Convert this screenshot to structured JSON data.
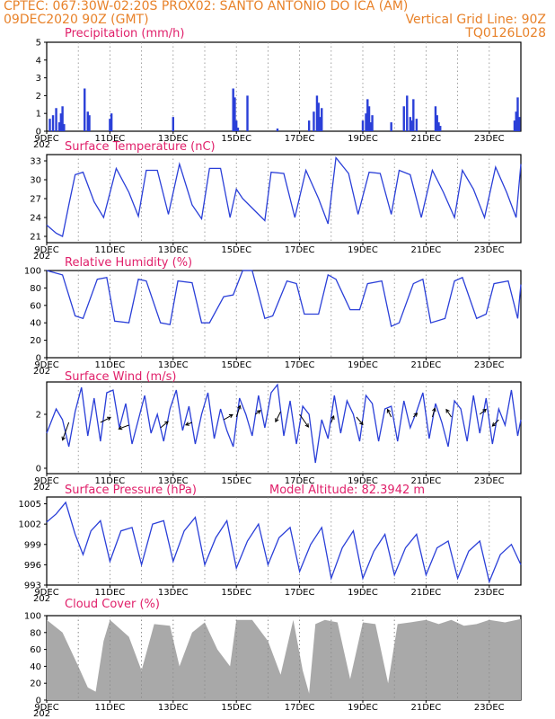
{
  "header": {
    "left1": "CPTEC:   067:30W-02:20S   PROX02: SANTO ANTONIO DO ICA (AM)",
    "left2": "09DEC2020 90Z (GMT)",
    "right2": "Vertical Grid Line: 90Z",
    "right3": "TQ0126L028"
  },
  "x_labels": [
    "9DEC",
    "11DEC",
    "13DEC",
    "15DEC",
    "17DEC",
    "19DEC",
    "21DEC",
    "23DEC"
  ],
  "x_label_days": [
    0,
    2,
    4,
    6,
    8,
    10,
    12,
    14
  ],
  "days_total": 15,
  "year_fragment": "202",
  "colors": {
    "line": "#2a3fd8",
    "title": "#e0206a",
    "header": "#e8822a",
    "cloud": "#a9a9a9"
  },
  "chart_data": [
    {
      "type": "bar",
      "title": "Precipitation (mm/h)",
      "ylim": [
        0,
        5
      ],
      "yticks": [
        "0",
        "1",
        "2",
        "3",
        "4",
        "5"
      ],
      "x_days": [
        0.1,
        0.2,
        0.3,
        0.4,
        0.45,
        0.5,
        0.55,
        1.2,
        1.3,
        1.35,
        2.0,
        2.05,
        4.0,
        5.9,
        5.95,
        6.0,
        6.05,
        6.35,
        7.3,
        8.3,
        8.45,
        8.55,
        8.6,
        8.65,
        8.7,
        10.0,
        10.1,
        10.15,
        10.2,
        10.25,
        10.3,
        10.9,
        11.3,
        11.4,
        11.5,
        11.55,
        11.6,
        11.7,
        12.3,
        12.35,
        12.4,
        12.45,
        14.8,
        14.85,
        14.9,
        14.95
      ],
      "values": [
        0.7,
        0.9,
        1.3,
        0.5,
        1.0,
        1.4,
        0.4,
        2.4,
        1.1,
        0.9,
        0.7,
        1.0,
        0.8,
        2.4,
        1.9,
        0.6,
        0.2,
        2.0,
        0.15,
        0.6,
        1.1,
        2.0,
        1.6,
        0.8,
        1.3,
        0.6,
        1.0,
        1.8,
        1.4,
        0.5,
        0.9,
        0.5,
        1.4,
        2.0,
        0.8,
        0.6,
        1.8,
        0.7,
        1.4,
        0.9,
        0.5,
        0.3,
        0.6,
        1.1,
        1.9,
        0.8
      ]
    },
    {
      "type": "line",
      "title": "Surface Temperature (nC)",
      "ylim": [
        20,
        34
      ],
      "yticks": [
        "21",
        "24",
        "27",
        "30",
        "33"
      ],
      "ytick_values": [
        21,
        24,
        27,
        30,
        33
      ],
      "x_days": [
        0,
        0.3,
        0.5,
        0.7,
        0.9,
        1.15,
        1.5,
        1.8,
        2.2,
        2.6,
        2.9,
        3.15,
        3.5,
        3.85,
        4.2,
        4.6,
        4.9,
        5.15,
        5.5,
        5.8,
        6.0,
        6.2,
        6.6,
        6.9,
        7.1,
        7.5,
        7.85,
        8.2,
        8.6,
        8.9,
        9.15,
        9.55,
        9.85,
        10.2,
        10.55,
        10.9,
        11.15,
        11.5,
        11.85,
        12.2,
        12.55,
        12.9,
        13.15,
        13.5,
        13.85,
        14.2,
        14.55,
        14.85,
        15
      ],
      "values": [
        22.8,
        21.5,
        21.0,
        26,
        30.8,
        31.2,
        26.5,
        24.0,
        31.8,
        28,
        24.2,
        31.5,
        31.5,
        24.5,
        32.5,
        26,
        23.8,
        31.8,
        31.8,
        24.0,
        28.5,
        27,
        25,
        23.5,
        31.2,
        31,
        24.0,
        31.5,
        27,
        23.0,
        33.5,
        31,
        24.5,
        31.2,
        31,
        24.5,
        31.5,
        30.8,
        24.0,
        31.5,
        28,
        24.0,
        31.5,
        28.5,
        24,
        32,
        28,
        24,
        32.5
      ]
    },
    {
      "type": "line",
      "title": "Relative Humidity (%)",
      "ylim": [
        0,
        100
      ],
      "yticks": [
        "0",
        "20",
        "40",
        "60",
        "80",
        "100"
      ],
      "ytick_values": [
        0,
        20,
        40,
        60,
        80,
        100
      ],
      "x_days": [
        0,
        0.5,
        0.9,
        1.15,
        1.6,
        1.9,
        2.15,
        2.6,
        2.9,
        3.15,
        3.6,
        3.9,
        4.15,
        4.6,
        4.9,
        5.15,
        5.6,
        5.9,
        6.2,
        6.5,
        6.9,
        7.15,
        7.6,
        7.9,
        8.15,
        8.6,
        8.9,
        9.15,
        9.6,
        9.9,
        10.15,
        10.6,
        10.9,
        11.15,
        11.6,
        11.9,
        12.15,
        12.6,
        12.9,
        13.15,
        13.6,
        13.9,
        14.15,
        14.6,
        14.9,
        15
      ],
      "values": [
        100,
        95,
        48,
        45,
        90,
        92,
        42,
        40,
        90,
        88,
        40,
        38,
        88,
        86,
        40,
        40,
        70,
        72,
        100,
        100,
        45,
        48,
        88,
        85,
        50,
        50,
        95,
        90,
        55,
        55,
        85,
        88,
        36,
        40,
        85,
        90,
        40,
        45,
        88,
        92,
        45,
        50,
        85,
        88,
        45,
        84
      ]
    },
    {
      "type": "line",
      "title": "Surface Wind (m/s)",
      "ylim": [
        -0.2,
        3.2
      ],
      "yticks": [
        "0",
        "2"
      ],
      "ytick_values": [
        0,
        2
      ],
      "x_days": [
        0,
        0.3,
        0.5,
        0.7,
        0.9,
        1.1,
        1.3,
        1.5,
        1.7,
        1.9,
        2.1,
        2.3,
        2.5,
        2.7,
        2.9,
        3.1,
        3.3,
        3.5,
        3.7,
        3.9,
        4.1,
        4.3,
        4.5,
        4.7,
        4.9,
        5.1,
        5.3,
        5.5,
        5.7,
        5.9,
        6.1,
        6.3,
        6.5,
        6.7,
        6.9,
        7.1,
        7.3,
        7.5,
        7.7,
        7.9,
        8.1,
        8.3,
        8.5,
        8.7,
        8.9,
        9.1,
        9.3,
        9.5,
        9.7,
        9.9,
        10.1,
        10.3,
        10.5,
        10.7,
        10.9,
        11.1,
        11.3,
        11.5,
        11.7,
        11.9,
        12.1,
        12.3,
        12.5,
        12.7,
        12.9,
        13.1,
        13.3,
        13.5,
        13.7,
        13.9,
        14.1,
        14.3,
        14.5,
        14.7,
        14.9,
        15
      ],
      "values": [
        1.3,
        2.2,
        1.8,
        0.8,
        2.1,
        3.0,
        1.2,
        2.6,
        1.0,
        2.8,
        2.9,
        1.5,
        2.4,
        0.9,
        1.8,
        2.7,
        1.3,
        2.0,
        1.0,
        2.2,
        2.9,
        1.4,
        2.3,
        0.9,
        2.0,
        2.8,
        1.1,
        2.2,
        1.4,
        0.8,
        2.6,
        2.0,
        1.2,
        2.7,
        1.5,
        2.8,
        3.1,
        1.2,
        2.5,
        0.9,
        2.3,
        2.0,
        0.2,
        1.8,
        1.1,
        2.7,
        1.3,
        2.5,
        2.0,
        1.0,
        2.7,
        2.4,
        1.0,
        2.2,
        2.3,
        1.0,
        2.5,
        1.5,
        2.1,
        2.8,
        1.1,
        2.4,
        1.7,
        0.8,
        2.5,
        2.2,
        1.0,
        2.7,
        1.3,
        2.6,
        0.9,
        2.2,
        1.6,
        2.9,
        1.2,
        1.8
      ],
      "arrows": [
        [
          0.7,
          1.7,
          -0.5,
          -1.4
        ],
        [
          1.7,
          1.7,
          0.8,
          0.4
        ],
        [
          2.6,
          1.6,
          -0.8,
          -0.3
        ],
        [
          3.6,
          1.5,
          0.6,
          0.5
        ],
        [
          4.6,
          1.7,
          -0.5,
          -0.2
        ],
        [
          5.6,
          1.8,
          0.7,
          0.4
        ],
        [
          6.0,
          1.9,
          0.3,
          0.9
        ],
        [
          6.6,
          2.0,
          0.4,
          0.3
        ],
        [
          7.4,
          2.1,
          -0.4,
          -0.8
        ],
        [
          8.0,
          2.0,
          0.7,
          -1.0
        ],
        [
          9.0,
          1.7,
          0.2,
          0.5
        ],
        [
          9.8,
          1.9,
          0.5,
          -0.6
        ],
        [
          10.9,
          1.9,
          -0.3,
          0.6
        ],
        [
          11.6,
          1.9,
          0.3,
          0.3
        ],
        [
          12.2,
          1.9,
          0.2,
          0.7
        ],
        [
          12.8,
          1.9,
          -0.4,
          0.6
        ],
        [
          13.7,
          2.0,
          0.5,
          0.4
        ],
        [
          14.3,
          1.8,
          -0.5,
          -0.5
        ]
      ]
    },
    {
      "type": "line",
      "title": "Surface Pressure (hPa)",
      "annotation": "Model Altitude: 82.3942  m",
      "ylim": [
        993,
        1006
      ],
      "yticks": [
        "993",
        "996",
        "999",
        "1002",
        "1005"
      ],
      "ytick_values": [
        993,
        996,
        999,
        1002,
        1005
      ],
      "x_days": [
        0,
        0.3,
        0.6,
        0.9,
        1.15,
        1.4,
        1.7,
        2.0,
        2.35,
        2.7,
        3.0,
        3.35,
        3.7,
        4.0,
        4.35,
        4.7,
        5.0,
        5.35,
        5.7,
        6.0,
        6.35,
        6.7,
        7.0,
        7.35,
        7.7,
        8.0,
        8.35,
        8.7,
        9.0,
        9.35,
        9.7,
        10.0,
        10.35,
        10.7,
        11.0,
        11.35,
        11.7,
        12.0,
        12.35,
        12.7,
        13.0,
        13.35,
        13.7,
        14.0,
        14.35,
        14.7,
        15
      ],
      "values": [
        1002.3,
        1003.5,
        1005.2,
        1000.5,
        997.5,
        1001,
        1002.5,
        996.5,
        1001,
        1001.5,
        996,
        1002,
        1002.5,
        996.5,
        1001,
        1003,
        996,
        1000,
        1002.5,
        995.5,
        999.5,
        1002,
        996,
        1000,
        1001.5,
        995,
        999,
        1001.5,
        994,
        998.5,
        1001,
        994,
        998,
        1000.5,
        994.5,
        998.5,
        1000.5,
        994.5,
        998.5,
        999.5,
        994,
        998,
        999.5,
        993.5,
        997.5,
        999,
        996
      ]
    },
    {
      "type": "area",
      "title": "Cloud Cover (%)",
      "ylim": [
        0,
        100
      ],
      "yticks": [
        "0",
        "20",
        "40",
        "60",
        "80",
        "100"
      ],
      "ytick_values": [
        0,
        20,
        40,
        60,
        80,
        100
      ],
      "x_days": [
        0,
        0.5,
        1.0,
        1.3,
        1.55,
        1.8,
        2.0,
        2.6,
        3.0,
        3.4,
        3.9,
        4.2,
        4.6,
        5.0,
        5.4,
        5.8,
        6.0,
        6.5,
        7.0,
        7.4,
        7.8,
        8.1,
        8.3,
        8.5,
        8.8,
        9.2,
        9.6,
        10.0,
        10.4,
        10.8,
        11.1,
        11.5,
        12.0,
        12.4,
        12.8,
        13.2,
        13.6,
        14.0,
        14.5,
        15
      ],
      "values": [
        95,
        80,
        40,
        15,
        10,
        70,
        95,
        75,
        35,
        90,
        88,
        40,
        80,
        92,
        60,
        40,
        95,
        95,
        70,
        30,
        95,
        35,
        8,
        90,
        95,
        92,
        25,
        92,
        90,
        20,
        90,
        92,
        95,
        90,
        95,
        88,
        90,
        95,
        92,
        96
      ]
    }
  ]
}
